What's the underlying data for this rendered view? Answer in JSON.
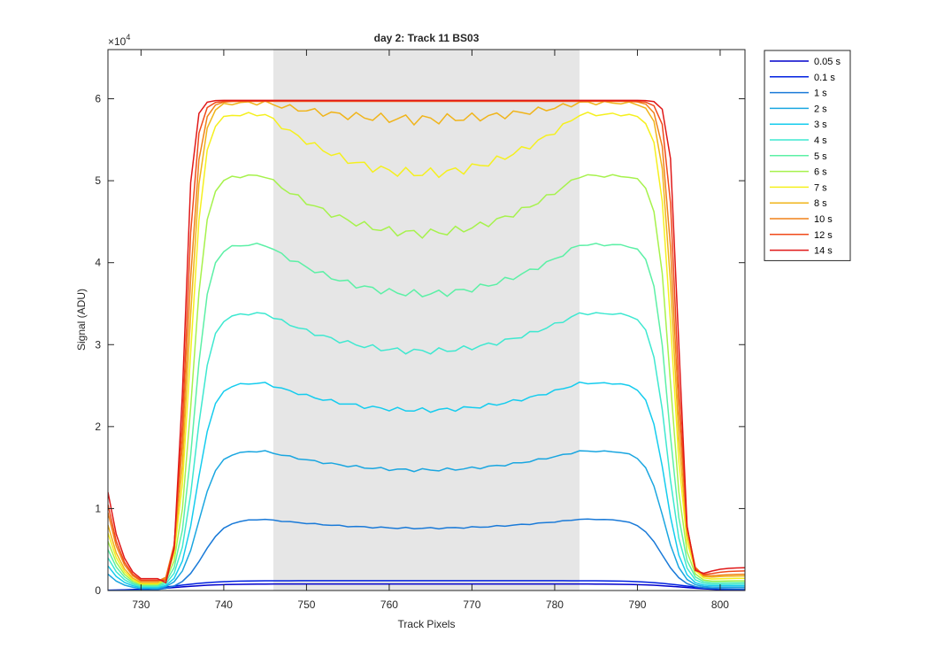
{
  "chart_data": {
    "type": "line",
    "title": "day 2: Track 11  BS03",
    "xlabel": "Track Pixels",
    "ylabel": "Signal (ADU)",
    "xlim": [
      726,
      803
    ],
    "ylim": [
      0,
      66000
    ],
    "exponent_label": "×10",
    "exponent_value": "4",
    "x_ticks": [
      730,
      740,
      750,
      760,
      770,
      780,
      790,
      800
    ],
    "y_ticks": [
      0,
      10000,
      20000,
      30000,
      40000,
      50000,
      60000
    ],
    "y_tick_labels": [
      "0",
      "1",
      "2",
      "3",
      "4",
      "5",
      "6"
    ],
    "shaded_region": {
      "x0": 746,
      "x1": 783,
      "color": "#e6e6e6"
    },
    "legend_position": "outside-right-top",
    "grid": false,
    "series": [
      {
        "name": "0.05 s",
        "color": "#0000cc",
        "rise_mid": 734.5,
        "fall_mid": 795.5,
        "width": 2.5,
        "peak": 800,
        "dip": 0,
        "edge": 0,
        "baseline": 0
      },
      {
        "name": "0.1 s",
        "color": "#0020e0",
        "rise_mid": 734.5,
        "fall_mid": 795.5,
        "width": 2.5,
        "peak": 1200,
        "dip": 0,
        "edge": 0,
        "baseline": 0
      },
      {
        "name": "1 s",
        "color": "#1a7ad8",
        "rise_mid": 737.5,
        "fall_mid": 793.0,
        "width": 1.3,
        "peak": 8700,
        "dip": 1100,
        "edge": 0,
        "baseline": 200
      },
      {
        "name": "2 s",
        "color": "#1aa6e0",
        "rise_mid": 737.0,
        "fall_mid": 793.2,
        "width": 1.1,
        "peak": 17000,
        "dip": 2300,
        "edge": 2000,
        "baseline": 400
      },
      {
        "name": "3 s",
        "color": "#15ccee",
        "rise_mid": 736.8,
        "fall_mid": 793.4,
        "width": 1.0,
        "peak": 25300,
        "dip": 3300,
        "edge": 3000,
        "baseline": 600
      },
      {
        "name": "4 s",
        "color": "#3ee8d0",
        "rise_mid": 736.6,
        "fall_mid": 793.6,
        "width": 0.95,
        "peak": 33800,
        "dip": 4600,
        "edge": 4000,
        "baseline": 800
      },
      {
        "name": "5 s",
        "color": "#5cf0a6",
        "rise_mid": 736.4,
        "fall_mid": 793.8,
        "width": 0.9,
        "peak": 42200,
        "dip": 6000,
        "edge": 5000,
        "baseline": 1000
      },
      {
        "name": "6 s",
        "color": "#a6f24c",
        "rise_mid": 736.2,
        "fall_mid": 794.0,
        "width": 0.85,
        "peak": 50600,
        "dip": 7000,
        "edge": 6000,
        "baseline": 1200
      },
      {
        "name": "7 s",
        "color": "#f5f01e",
        "rise_mid": 736.0,
        "fall_mid": 794.2,
        "width": 0.8,
        "peak": 58100,
        "dip": 7200,
        "edge": 7000,
        "baseline": 1500
      },
      {
        "name": "8 s",
        "color": "#f0b41a",
        "rise_mid": 735.8,
        "fall_mid": 794.4,
        "width": 0.75,
        "peak": 59500,
        "dip": 2000,
        "edge": 8000,
        "baseline": 1800
      },
      {
        "name": "10 s",
        "color": "#f0821a",
        "rise_mid": 735.6,
        "fall_mid": 794.6,
        "width": 0.7,
        "peak": 59700,
        "dip": 0,
        "edge": 9500,
        "baseline": 2000
      },
      {
        "name": "12 s",
        "color": "#f04a1a",
        "rise_mid": 735.4,
        "fall_mid": 794.8,
        "width": 0.6,
        "peak": 59700,
        "dip": 0,
        "edge": 10500,
        "baseline": 2400
      },
      {
        "name": "14 s",
        "color": "#e01818",
        "rise_mid": 735.2,
        "fall_mid": 795.0,
        "width": 0.5,
        "peak": 59800,
        "dip": 0,
        "edge": 12000,
        "baseline": 2800
      }
    ]
  }
}
